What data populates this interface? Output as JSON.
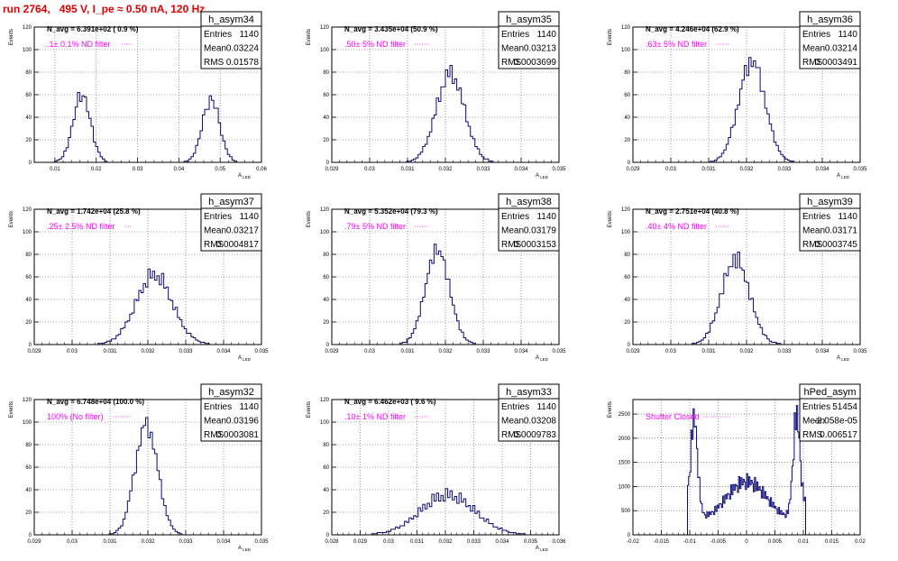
{
  "run_title": "run 2764,   495 V, I_pe ≈ 0.50 nA, 120 Hz",
  "colors": {
    "hist": "#0a0a7a",
    "annotation": "#ff00ff",
    "axis": "#000000",
    "grid": "#555555",
    "title": "#e00000"
  },
  "stats_labels": {
    "entries": "Entries",
    "mean": "Mean",
    "rms": "RMS"
  },
  "chart_data": [
    {
      "type": "bar",
      "name": "h_asym34",
      "navg": "N_avg = 6.391e+02 ( 0.9 %)",
      "note": ".1± 0.1% ND filter",
      "stats": {
        "entries": "1140",
        "mean": "0.03224",
        "rms": "0.01578"
      },
      "ylabel": "Events",
      "xlabel": "A",
      "xlabel_sub": "LED",
      "grid": true,
      "xlim": [
        0.005,
        0.06
      ],
      "ylim": [
        0,
        120
      ],
      "xticks": [
        0.01,
        0.02,
        0.03,
        0.04,
        0.05,
        0.06
      ],
      "xtick_labels": [
        "0.01",
        "0.02",
        "0.03",
        "0.04",
        "0.05",
        "0.06"
      ],
      "yticks": [
        0,
        20,
        40,
        60,
        80,
        100,
        120
      ],
      "peaks": [
        {
          "mu": 0.0165,
          "sigma": 0.0021,
          "h": 60,
          "mult": [
            1,
            1.1,
            0.9,
            1,
            1.05,
            0.95
          ]
        },
        {
          "mu": 0.0478,
          "sigma": 0.0021,
          "h": 56,
          "mult": [
            1,
            0.95,
            1.1,
            1,
            0.9,
            1.05
          ]
        }
      ]
    },
    {
      "type": "bar",
      "name": "h_asym35",
      "navg": "N_avg = 3.435e+04 (50.9 %)",
      "note": ".50± 5% ND filter",
      "stats": {
        "entries": "1140",
        "mean": "0.03213",
        "rms": "0.0003699"
      },
      "ylabel": "Events",
      "xlabel": "A",
      "xlabel_sub": "LED",
      "grid": true,
      "xlim": [
        0.029,
        0.035
      ],
      "ylim": [
        0,
        120
      ],
      "xticks": [
        0.029,
        0.03,
        0.031,
        0.032,
        0.033,
        0.034,
        0.035
      ],
      "xtick_labels": [
        "0.029",
        "0.03",
        "0.031",
        "0.032",
        "0.033",
        "0.034",
        "0.035"
      ],
      "yticks": [
        0,
        20,
        40,
        60,
        80,
        100,
        120
      ],
      "peaks": [
        {
          "mu": 0.03213,
          "sigma": 0.00037,
          "h": 80,
          "mult": [
            1,
            0.92,
            1.06,
            0.95,
            1.08,
            0.9
          ]
        }
      ]
    },
    {
      "type": "bar",
      "name": "h_asym36",
      "navg": "N_avg = 4.246e+04 (62.9 %)",
      "note": ".63± 5% ND filter",
      "stats": {
        "entries": "1140",
        "mean": "0.03214",
        "rms": "0.0003491"
      },
      "ylabel": "Events",
      "xlabel": "A",
      "xlabel_sub": "LED",
      "grid": true,
      "xlim": [
        0.029,
        0.035
      ],
      "ylim": [
        0,
        120
      ],
      "xticks": [
        0.029,
        0.03,
        0.031,
        0.032,
        0.033,
        0.034,
        0.035
      ],
      "xtick_labels": [
        "0.029",
        "0.03",
        "0.031",
        "0.032",
        "0.033",
        "0.034",
        "0.035"
      ],
      "yticks": [
        0,
        20,
        40,
        60,
        80,
        100,
        120
      ],
      "peaks": [
        {
          "mu": 0.03214,
          "sigma": 0.00035,
          "h": 90,
          "mult": [
            1,
            1.08,
            0.9,
            1.04,
            0.94,
            1.02
          ]
        }
      ]
    },
    {
      "type": "bar",
      "name": "h_asym37",
      "navg": "N_avg = 1.742e+04 (25.8 %)",
      "note": ".25± 2.5% ND filter",
      "stats": {
        "entries": "1140",
        "mean": "0.03217",
        "rms": "0.0004817"
      },
      "ylabel": "Events",
      "xlabel": "A",
      "xlabel_sub": "LED",
      "grid": true,
      "xlim": [
        0.029,
        0.035
      ],
      "ylim": [
        0,
        120
      ],
      "xticks": [
        0.029,
        0.03,
        0.031,
        0.032,
        0.033,
        0.034,
        0.035
      ],
      "xtick_labels": [
        "0.029",
        "0.03",
        "0.031",
        "0.032",
        "0.033",
        "0.034",
        "0.035"
      ],
      "yticks": [
        0,
        20,
        40,
        60,
        80,
        100,
        120
      ],
      "peaks": [
        {
          "mu": 0.03217,
          "sigma": 0.00048,
          "h": 62,
          "mult": [
            1,
            0.9,
            1.12,
            0.96,
            1.05,
            0.92
          ]
        }
      ]
    },
    {
      "type": "bar",
      "name": "h_asym38",
      "navg": "N_avg = 5.352e+04 (79.3 %)",
      "note": ".79± 5% ND filter",
      "stats": {
        "entries": "1140",
        "mean": "0.03179",
        "rms": "0.0003153"
      },
      "ylabel": "Events",
      "xlabel": "A",
      "xlabel_sub": "LED",
      "grid": true,
      "xlim": [
        0.029,
        0.035
      ],
      "ylim": [
        0,
        120
      ],
      "xticks": [
        0.029,
        0.03,
        0.031,
        0.032,
        0.033,
        0.034,
        0.035
      ],
      "xtick_labels": [
        "0.029",
        "0.03",
        "0.031",
        "0.032",
        "0.033",
        "0.034",
        "0.035"
      ],
      "yticks": [
        0,
        20,
        40,
        60,
        80,
        100,
        120
      ],
      "peaks": [
        {
          "mu": 0.03179,
          "sigma": 0.00032,
          "h": 84,
          "mult": [
            1,
            1.05,
            0.92,
            1.08,
            0.95,
            1
          ]
        }
      ]
    },
    {
      "type": "bar",
      "name": "h_asym39",
      "navg": "N_avg = 2.751e+04 (40.8 %)",
      "note": ".40± 4% ND filter",
      "stats": {
        "entries": "1140",
        "mean": "0.03171",
        "rms": "0.0003745"
      },
      "ylabel": "Events",
      "xlabel": "A",
      "xlabel_sub": "LED",
      "grid": true,
      "xlim": [
        0.029,
        0.035
      ],
      "ylim": [
        0,
        120
      ],
      "xticks": [
        0.029,
        0.03,
        0.031,
        0.032,
        0.033,
        0.034,
        0.035
      ],
      "xtick_labels": [
        "0.029",
        "0.03",
        "0.031",
        "0.032",
        "0.033",
        "0.034",
        "0.035"
      ],
      "yticks": [
        0,
        20,
        40,
        60,
        80,
        100,
        120
      ],
      "peaks": [
        {
          "mu": 0.03171,
          "sigma": 0.00037,
          "h": 76,
          "mult": [
            1,
            0.94,
            1.06,
            0.9,
            1.1,
            0.96
          ]
        }
      ]
    },
    {
      "type": "bar",
      "name": "h_asym32",
      "navg": "N_avg = 6.748e+04 (100.0 %)",
      "note": "100% (No filter)",
      "stats": {
        "entries": "1140",
        "mean": "0.03196",
        "rms": "0.0003081"
      },
      "ylabel": "Events",
      "xlabel": "A",
      "xlabel_sub": "LED",
      "grid": true,
      "xlim": [
        0.029,
        0.035
      ],
      "ylim": [
        0,
        120
      ],
      "xticks": [
        0.029,
        0.03,
        0.031,
        0.032,
        0.033,
        0.034,
        0.035
      ],
      "xtick_labels": [
        "0.029",
        "0.03",
        "0.031",
        "0.032",
        "0.033",
        "0.034",
        "0.035"
      ],
      "yticks": [
        0,
        20,
        40,
        60,
        80,
        100,
        120
      ],
      "peaks": [
        {
          "mu": 0.03196,
          "sigma": 0.0003,
          "h": 98,
          "mult": [
            1,
            1.06,
            0.9,
            1.02,
            0.95,
            1.04
          ]
        }
      ]
    },
    {
      "type": "bar",
      "name": "h_asym33",
      "navg": "N_avg = 6.462e+03 ( 9.6 %)",
      "note": ".10± 1% ND filter",
      "stats": {
        "entries": "1140",
        "mean": "0.03208",
        "rms": "0.0009783"
      },
      "ylabel": "Events",
      "xlabel": "A",
      "xlabel_sub": "LED",
      "grid": true,
      "xlim": [
        0.028,
        0.036
      ],
      "ylim": [
        0,
        120
      ],
      "xticks": [
        0.028,
        0.029,
        0.03,
        0.031,
        0.032,
        0.033,
        0.034,
        0.035,
        0.036
      ],
      "xtick_labels": [
        "0.028",
        "0.029",
        "0.03",
        "0.031",
        "0.032",
        "0.033",
        "0.034",
        "0.035",
        "0.036"
      ],
      "yticks": [
        0,
        20,
        40,
        60,
        80,
        100,
        120
      ],
      "peaks": [
        {
          "mu": 0.03208,
          "sigma": 0.00095,
          "h": 36,
          "mult": [
            1,
            0.85,
            1.15,
            0.92,
            1.1,
            0.88
          ]
        }
      ]
    },
    {
      "type": "bar",
      "name": "hPed_asym",
      "navg": "",
      "note": "Shutter Closed",
      "stats": {
        "entries": "51454",
        "mean": "-2.058e-05",
        "rms": "0.006517"
      },
      "ylabel": "Events",
      "xlabel": "",
      "xlabel_sub": "",
      "grid": true,
      "xlim": [
        -0.02,
        0.02
      ],
      "ylim": [
        0,
        2800
      ],
      "xticks": [
        -0.02,
        -0.015,
        -0.01,
        -0.005,
        0,
        0.005,
        0.01,
        0.015,
        0.02
      ],
      "xtick_labels": [
        "-0.02",
        "-0.015",
        "-0.01",
        "-0.005",
        "0",
        "0.005",
        "0.01",
        "0.015",
        "0.02"
      ],
      "yticks": [
        0,
        500,
        1000,
        1500,
        2000,
        2500
      ],
      "ped": true
    }
  ]
}
